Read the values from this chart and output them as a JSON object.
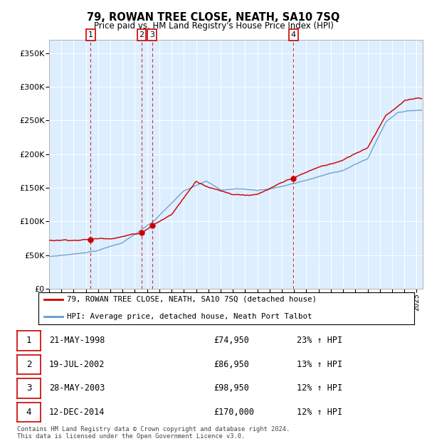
{
  "title": "79, ROWAN TREE CLOSE, NEATH, SA10 7SQ",
  "subtitle": "Price paid vs. HM Land Registry's House Price Index (HPI)",
  "ylabel_ticks": [
    "£0",
    "£50K",
    "£100K",
    "£150K",
    "£200K",
    "£250K",
    "£300K",
    "£350K"
  ],
  "ytick_values": [
    0,
    50000,
    100000,
    150000,
    200000,
    250000,
    300000,
    350000
  ],
  "ylim": [
    0,
    370000
  ],
  "xlim_start": 1995.0,
  "xlim_end": 2025.5,
  "color_red": "#cc0000",
  "color_blue": "#6699cc",
  "color_bg": "#ddeeff",
  "transactions": [
    {
      "date_dec": 1998.388,
      "price": 74950,
      "label": "1"
    },
    {
      "date_dec": 2002.548,
      "price": 86950,
      "label": "2"
    },
    {
      "date_dec": 2003.408,
      "price": 98950,
      "label": "3"
    },
    {
      "date_dec": 2014.947,
      "price": 170000,
      "label": "4"
    }
  ],
  "legend_line1": "79, ROWAN TREE CLOSE, NEATH, SA10 7SQ (detached house)",
  "legend_line2": "HPI: Average price, detached house, Neath Port Talbot",
  "table_rows": [
    {
      "num": "1",
      "date": "21-MAY-1998",
      "price": "£74,950",
      "hpi": "23% ↑ HPI"
    },
    {
      "num": "2",
      "date": "19-JUL-2002",
      "price": "£86,950",
      "hpi": "13% ↑ HPI"
    },
    {
      "num": "3",
      "date": "28-MAY-2003",
      "price": "£98,950",
      "hpi": "12% ↑ HPI"
    },
    {
      "num": "4",
      "date": "12-DEC-2014",
      "price": "£170,000",
      "hpi": "12% ↑ HPI"
    }
  ],
  "footer": "Contains HM Land Registry data © Crown copyright and database right 2024.\nThis data is licensed under the Open Government Licence v3.0.",
  "hpi_anchors_t": [
    1995.0,
    1997.0,
    1999.0,
    2001.0,
    2003.5,
    2006.0,
    2007.8,
    2009.0,
    2010.5,
    2012.0,
    2013.5,
    2015.0,
    2017.0,
    2019.0,
    2021.0,
    2022.5,
    2023.5,
    2025.0
  ],
  "hpi_anchors_v": [
    48000,
    52000,
    58000,
    70000,
    100000,
    145000,
    162000,
    148000,
    150000,
    148000,
    152000,
    158000,
    168000,
    178000,
    195000,
    250000,
    265000,
    268000
  ],
  "red_anchors_t": [
    1995.0,
    1997.0,
    1998.388,
    2000.0,
    2002.548,
    2003.408,
    2005.0,
    2007.0,
    2008.5,
    2010.0,
    2012.0,
    2014.947,
    2017.0,
    2019.0,
    2021.0,
    2022.5,
    2024.0,
    2025.0
  ],
  "red_anchors_v": [
    72000,
    74000,
    74950,
    78000,
    86950,
    98950,
    115000,
    165000,
    155000,
    148000,
    148000,
    170000,
    185000,
    195000,
    215000,
    265000,
    285000,
    290000
  ]
}
